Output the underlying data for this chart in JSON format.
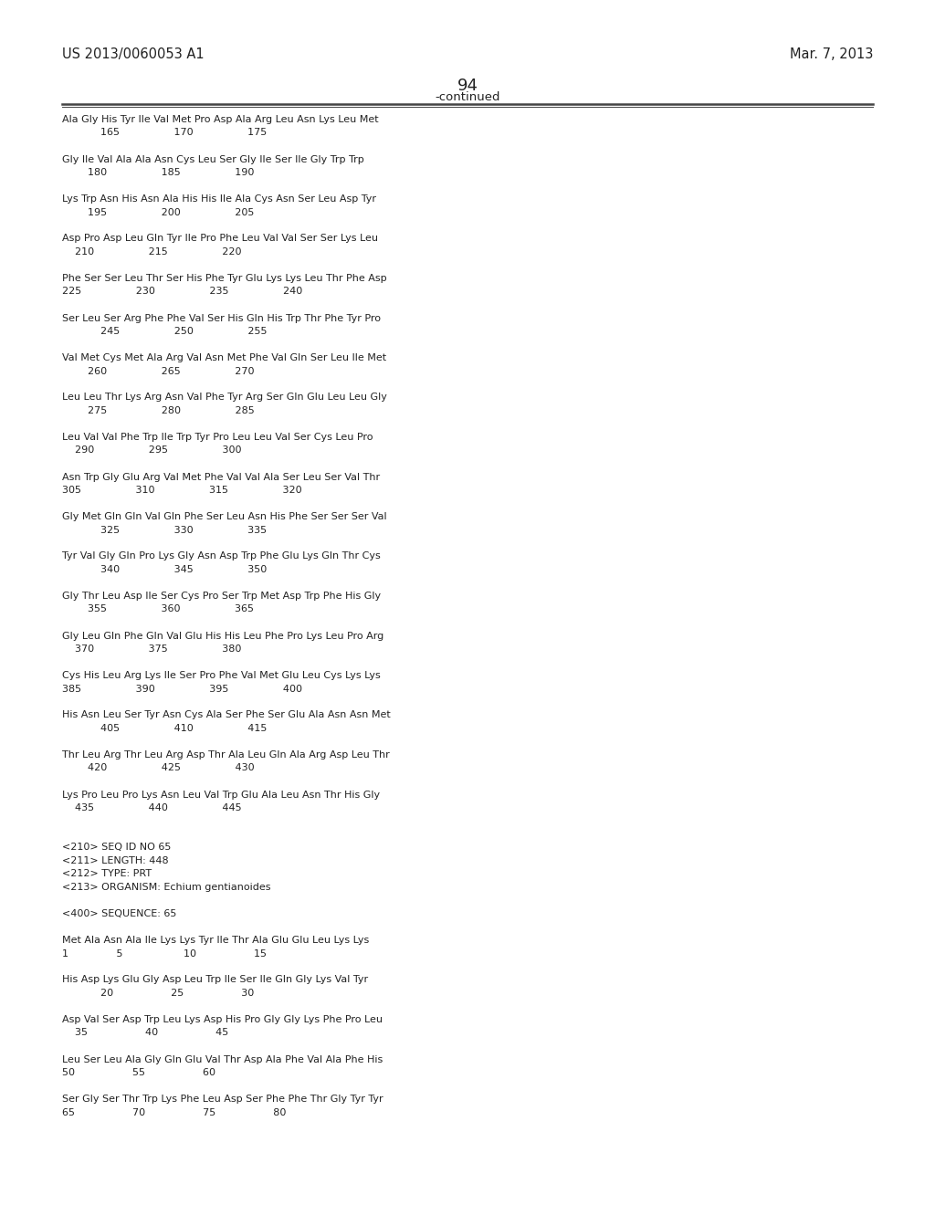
{
  "header_left": "US 2013/0060053 A1",
  "header_right": "Mar. 7, 2013",
  "page_number": "94",
  "continued_label": "-continued",
  "background_color": "#ffffff",
  "text_color": "#222222",
  "font_size": 8.0,
  "header_font_size": 10.5,
  "page_num_font_size": 13,
  "continued_font_size": 9.5,
  "sequence_lines": [
    "Ala Gly His Tyr Ile Val Met Pro Asp Ala Arg Leu Asn Lys Leu Met",
    "            165                 170                 175",
    "",
    "Gly Ile Val Ala Ala Asn Cys Leu Ser Gly Ile Ser Ile Gly Trp Trp",
    "        180                 185                 190",
    "",
    "Lys Trp Asn His Asn Ala His His Ile Ala Cys Asn Ser Leu Asp Tyr",
    "        195                 200                 205",
    "",
    "Asp Pro Asp Leu Gln Tyr Ile Pro Phe Leu Val Val Ser Ser Lys Leu",
    "    210                 215                 220",
    "",
    "Phe Ser Ser Leu Thr Ser His Phe Tyr Glu Lys Lys Leu Thr Phe Asp",
    "225                 230                 235                 240",
    "",
    "Ser Leu Ser Arg Phe Phe Val Ser His Gln His Trp Thr Phe Tyr Pro",
    "            245                 250                 255",
    "",
    "Val Met Cys Met Ala Arg Val Asn Met Phe Val Gln Ser Leu Ile Met",
    "        260                 265                 270",
    "",
    "Leu Leu Thr Lys Arg Asn Val Phe Tyr Arg Ser Gln Glu Leu Leu Gly",
    "        275                 280                 285",
    "",
    "Leu Val Val Phe Trp Ile Trp Tyr Pro Leu Leu Val Ser Cys Leu Pro",
    "    290                 295                 300",
    "",
    "Asn Trp Gly Glu Arg Val Met Phe Val Val Ala Ser Leu Ser Val Thr",
    "305                 310                 315                 320",
    "",
    "Gly Met Gln Gln Val Gln Phe Ser Leu Asn His Phe Ser Ser Ser Val",
    "            325                 330                 335",
    "",
    "Tyr Val Gly Gln Pro Lys Gly Asn Asp Trp Phe Glu Lys Gln Thr Cys",
    "            340                 345                 350",
    "",
    "Gly Thr Leu Asp Ile Ser Cys Pro Ser Trp Met Asp Trp Phe His Gly",
    "        355                 360                 365",
    "",
    "Gly Leu Gln Phe Gln Val Glu His His Leu Phe Pro Lys Leu Pro Arg",
    "    370                 375                 380",
    "",
    "Cys His Leu Arg Lys Ile Ser Pro Phe Val Met Glu Leu Cys Lys Lys",
    "385                 390                 395                 400",
    "",
    "His Asn Leu Ser Tyr Asn Cys Ala Ser Phe Ser Glu Ala Asn Asn Met",
    "            405                 410                 415",
    "",
    "Thr Leu Arg Thr Leu Arg Asp Thr Ala Leu Gln Ala Arg Asp Leu Thr",
    "        420                 425                 430",
    "",
    "Lys Pro Leu Pro Lys Asn Leu Val Trp Glu Ala Leu Asn Thr His Gly",
    "    435                 440                 445",
    "",
    "",
    "<210> SEQ ID NO 65",
    "<211> LENGTH: 448",
    "<212> TYPE: PRT",
    "<213> ORGANISM: Echium gentianoides",
    "",
    "<400> SEQUENCE: 65",
    "",
    "Met Ala Asn Ala Ile Lys Lys Tyr Ile Thr Ala Glu Glu Leu Lys Lys",
    "1               5                   10                  15",
    "",
    "His Asp Lys Glu Gly Asp Leu Trp Ile Ser Ile Gln Gly Lys Val Tyr",
    "            20                  25                  30",
    "",
    "Asp Val Ser Asp Trp Leu Lys Asp His Pro Gly Gly Lys Phe Pro Leu",
    "    35                  40                  45",
    "",
    "Leu Ser Leu Ala Gly Gln Glu Val Thr Asp Ala Phe Val Ala Phe His",
    "50                  55                  60",
    "",
    "Ser Gly Ser Thr Trp Lys Phe Leu Asp Ser Phe Phe Thr Gly Tyr Tyr",
    "65                  70                  75                  80"
  ]
}
